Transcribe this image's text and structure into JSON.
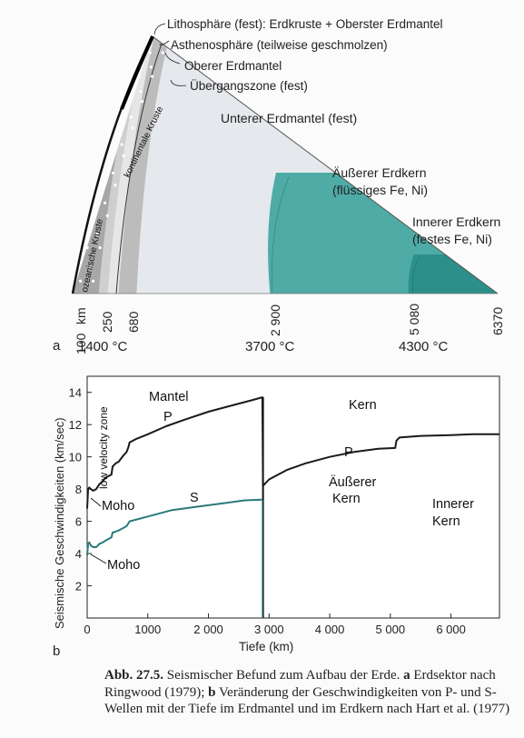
{
  "figure_a": {
    "panel_label": "a",
    "layer_labels": [
      "Lithosphäre (fest): Erdkruste + Oberster Erdmantel",
      "Asthenosphäre (teilweise geschmolzen)",
      "Oberer Erdmantel",
      "Übergangszone (fest)"
    ],
    "lower_mantle_label": "Unterer Erdmantel (fest)",
    "outer_core_label": [
      "Äußerer Erdkern",
      "(flüssiges Fe, Ni)"
    ],
    "inner_core_label": [
      "Innerer Erdkern",
      "(festes Fe, Ni)"
    ],
    "crust_labels": {
      "continental": "kontinentale Kruste",
      "oceanic": "ozeanische Kruste"
    },
    "depth_unit": "km",
    "depths": [
      "100",
      "250",
      "680",
      "2900",
      "5080",
      "6370"
    ],
    "depth_labels_display": [
      "100",
      "250",
      "680",
      "2 900",
      "5 080",
      "6370"
    ],
    "temperatures": [
      "1400 °C",
      "3700 °C",
      "4300 °C"
    ],
    "colors": {
      "lithosphere": "#a7a7a7",
      "asthenosphere": "#cfcfcf",
      "upper_mantle": "#e6e6e6",
      "transition": "#bcbcbc",
      "lower_mantle": "#e5e8ec",
      "outer_core": "#4eaba6",
      "inner_core": "#2c8f8a",
      "crust": "#000000"
    }
  },
  "chart_data": {
    "type": "line",
    "panel_label": "b",
    "title": "",
    "xlabel": "Tiefe (km)",
    "ylabel": "Seismische Geschwindigkeiten (km/sec)",
    "xlim": [
      0,
      6800
    ],
    "ylim": [
      0,
      15
    ],
    "x_ticks": [
      0,
      1000,
      2000,
      3000,
      4000,
      5000,
      6000
    ],
    "x_tick_labels": [
      "0",
      "1000",
      "2 000",
      "3 000",
      "4 000",
      "5 000",
      "6 000"
    ],
    "y_ticks": [
      2,
      4,
      6,
      8,
      10,
      12,
      14
    ],
    "y_tick_labels": [
      "2",
      "4",
      "6",
      "8",
      "10",
      "12",
      "14"
    ],
    "grid": "off",
    "annotations": {
      "mantel": "Mantel",
      "kern": "Kern",
      "low_velocity_zone": "low velocity zone",
      "moho_p": "Moho",
      "moho_s": "Moho",
      "aeusserer_kern": [
        "Äußerer",
        "Kern"
      ],
      "innerer_kern": [
        "Innerer",
        "Kern"
      ]
    },
    "series": [
      {
        "name": "P",
        "color": "#1a1a1a",
        "x": [
          0,
          15,
          35,
          60,
          100,
          150,
          200,
          260,
          300,
          350,
          400,
          420,
          470,
          520,
          560,
          600,
          650,
          680,
          700,
          800,
          1000,
          1300,
          1600,
          2000,
          2400,
          2700,
          2890,
          2900,
          3000,
          3300,
          3600,
          4000,
          4400,
          4800,
          5080,
          5100,
          5150,
          5500,
          6000,
          6370,
          6800
        ],
        "y": [
          6.8,
          8.0,
          8.1,
          8.0,
          7.9,
          8.0,
          8.3,
          8.5,
          8.7,
          8.8,
          8.9,
          9.4,
          9.6,
          9.7,
          9.9,
          10.1,
          10.3,
          10.6,
          10.9,
          11.1,
          11.4,
          11.9,
          12.3,
          12.8,
          13.2,
          13.5,
          13.7,
          8.2,
          8.6,
          9.2,
          9.6,
          10.0,
          10.3,
          10.5,
          10.55,
          11.0,
          11.2,
          11.3,
          11.35,
          11.4,
          11.4
        ]
      },
      {
        "name": "S",
        "color": "#2a7a78",
        "x": [
          0,
          15,
          35,
          60,
          100,
          150,
          200,
          260,
          300,
          400,
          420,
          500,
          600,
          650,
          700,
          1000,
          1400,
          1800,
          2200,
          2600,
          2890
        ],
        "y": [
          3.9,
          4.6,
          4.7,
          4.5,
          4.4,
          4.4,
          4.6,
          4.7,
          4.8,
          5.0,
          5.3,
          5.4,
          5.6,
          5.7,
          6.0,
          6.3,
          6.7,
          6.9,
          7.1,
          7.3,
          7.35
        ]
      }
    ],
    "discontinuity_x": 2900
  },
  "caption": {
    "label": "Abb. 27.5.",
    "text_intro": " Seismischer Befund zum Aufbau der Erde. ",
    "part_a_label": "a",
    "part_a_text": " Erdsektor nach Ringwood (1979); ",
    "part_b_label": "b",
    "part_b_text": " Veränderung der Geschwindigkeiten von P- und S-Wellen mit der Tiefe im Erdmantel und im Erdkern nach Hart et al. (1977)"
  }
}
